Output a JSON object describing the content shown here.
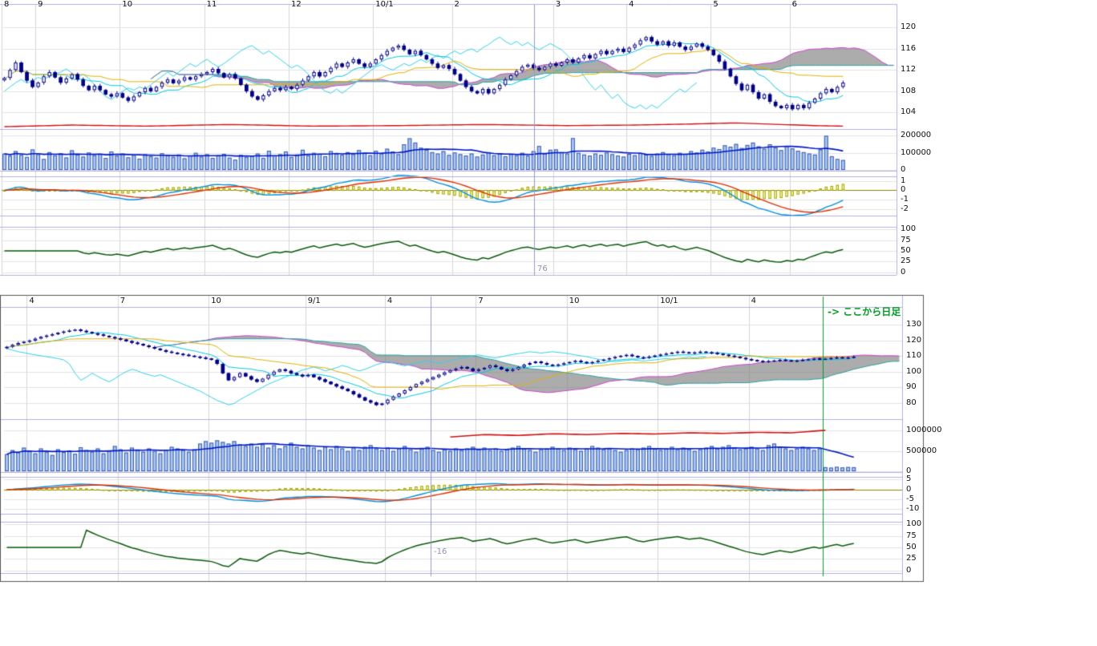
{
  "app": {
    "background": "#ffffff"
  },
  "colors": {
    "grid_v": "#d4d4d4",
    "grid_h": "#e2e2e2",
    "separator": "#b0b0dc",
    "border": "#585858",
    "candle": "#00008b",
    "candle_up_fill": "#ffffff",
    "candle_down_fill": "#00008b",
    "cloud": "rgba(128,128,128,0.65)",
    "senkou_a": "#cc44cc",
    "senkou_b": "#2aa0a0",
    "tenkan": "#00c8e0",
    "kijun": "#e0b000",
    "chikou": "#30d0e8",
    "volume_fill": "#a8c8f0",
    "volume_edge": "#3858b8",
    "volume_ma": "#0018c8",
    "red_line": "#d01010",
    "macd_hist_fill": "#ffffa0",
    "macd_hist_edge": "#a0a000",
    "macd_zero": "#8a8a00",
    "macd_line": "#0090e0",
    "macd_signal": "#e03000",
    "rsi": "#0a5a0a",
    "marker_line": "#9898cc",
    "marker_text": "#9090bb",
    "daily_line": "#00a020",
    "daily_text": "#00a020",
    "tick_text": "#111111"
  },
  "chart_data": [
    {
      "type": "candlestick",
      "title": "",
      "x_labels": [
        {
          "label": "8",
          "i": 0
        },
        {
          "label": "9",
          "i": 6
        },
        {
          "label": "10",
          "i": 21
        },
        {
          "label": "11",
          "i": 36
        },
        {
          "label": "12",
          "i": 51
        },
        {
          "label": "10/1",
          "i": 66
        },
        {
          "label": "2",
          "i": 80
        },
        {
          "label": "3",
          "i": 98
        },
        {
          "label": "4",
          "i": 111
        },
        {
          "label": "5",
          "i": 126
        },
        {
          "label": "6",
          "i": 140
        }
      ],
      "panes": {
        "price": {
          "range": [
            101,
            124
          ],
          "ticks": [
            {
              "label": "120",
              "v": 120
            },
            {
              "label": "116",
              "v": 116
            },
            {
              "label": "112",
              "v": 112
            },
            {
              "label": "108",
              "v": 108
            },
            {
              "label": "104",
              "v": 104
            }
          ]
        },
        "volume": {
          "range": [
            0,
            225
          ],
          "unit": 1000,
          "ticks": [
            {
              "label": "200000",
              "v": 200
            },
            {
              "label": "100000",
              "v": 100
            },
            {
              "label": "0",
              "v": 0
            }
          ]
        },
        "macd": {
          "range": [
            -2.6,
            1.4
          ],
          "ticks": [
            {
              "label": "1",
              "v": 1
            },
            {
              "label": "0",
              "v": 0
            },
            {
              "label": "-1",
              "v": -1
            },
            {
              "label": "-2",
              "v": -2
            }
          ]
        },
        "rsi": {
          "range": [
            -4,
            104
          ],
          "ticks": [
            {
              "label": "100",
              "v": 100
            },
            {
              "label": "75",
              "v": 75
            },
            {
              "label": "50",
              "v": 50
            },
            {
              "label": "25",
              "v": 25
            },
            {
              "label": "0",
              "v": 0
            }
          ]
        }
      },
      "closes": [
        110.5,
        112.0,
        113.4,
        111.6,
        110.0,
        108.8,
        109.6,
        110.8,
        111.6,
        110.6,
        109.6,
        110.4,
        111.2,
        110.2,
        109.0,
        108.2,
        109.0,
        108.2,
        107.4,
        107.0,
        107.6,
        106.8,
        106.2,
        107.0,
        107.8,
        108.6,
        108.0,
        108.8,
        109.6,
        110.2,
        109.5,
        110.0,
        110.6,
        110.2,
        110.8,
        111.2,
        111.6,
        112.2,
        111.4,
        110.6,
        111.2,
        110.4,
        109.2,
        108.0,
        107.0,
        106.4,
        107.2,
        108.0,
        108.6,
        108.2,
        108.8,
        108.4,
        109.2,
        110.0,
        110.8,
        111.6,
        110.8,
        111.6,
        112.4,
        113.2,
        112.6,
        113.4,
        114.0,
        113.2,
        112.6,
        113.2,
        114.0,
        114.8,
        115.6,
        116.2,
        116.6,
        115.8,
        115.0,
        115.6,
        114.8,
        114.0,
        113.2,
        112.4,
        112.9,
        112.2,
        111.2,
        110.0,
        108.8,
        108.0,
        107.6,
        108.4,
        107.6,
        108.4,
        109.2,
        110.2,
        111.0,
        111.8,
        112.6,
        113.0,
        112.4,
        112.0,
        112.6,
        113.2,
        112.8,
        113.4,
        114.0,
        113.4,
        114.2,
        114.8,
        114.2,
        115.0,
        115.6,
        115.0,
        115.6,
        116.0,
        115.4,
        116.2,
        116.8,
        117.6,
        118.2,
        117.4,
        116.8,
        117.4,
        116.6,
        117.2,
        116.4,
        115.8,
        116.4,
        117.0,
        116.4,
        115.8,
        114.8,
        113.6,
        112.2,
        110.8,
        109.4,
        108.2,
        109.2,
        107.8,
        106.6,
        107.4,
        106.0,
        105.2,
        104.8,
        105.4,
        104.6,
        105.4,
        104.8,
        105.8,
        106.6,
        107.6,
        108.4,
        107.8,
        108.8,
        109.6
      ],
      "volumes": [
        95,
        82,
        110,
        88,
        76,
        120,
        92,
        64,
        104,
        85,
        97,
        73,
        115,
        90,
        78,
        102,
        86,
        94,
        70,
        108,
        84,
        96,
        74,
        88,
        66,
        92,
        80,
        72,
        98,
        86,
        76,
        90,
        68,
        84,
        100,
        78,
        92,
        70,
        86,
        94,
        72,
        60,
        88,
        76,
        82,
        96,
        70,
        112,
        84,
        92,
        108,
        76,
        90,
        118,
        86,
        100,
        94,
        80,
        110,
        96,
        88,
        104,
        92,
        116,
        100,
        86,
        112,
        96,
        124,
        108,
        92,
        150,
        185,
        160,
        130,
        118,
        104,
        96,
        110,
        88,
        102,
        92,
        84,
        96,
        78,
        90,
        104,
        86,
        98,
        80,
        92,
        86,
        100,
        84,
        110,
        140,
        96,
        118,
        120,
        104,
        96,
        186,
        100,
        90,
        84,
        96,
        88,
        102,
        92,
        84,
        78,
        94,
        86,
        98,
        90,
        82,
        96,
        104,
        92,
        86,
        100,
        94,
        110,
        102,
        118,
        108,
        130,
        122,
        144,
        136,
        152,
        128,
        146,
        160,
        138,
        124,
        150,
        132,
        116,
        140,
        126,
        112,
        104,
        96,
        90,
        120,
        200,
        80,
        64,
        58
      ],
      "overlay_red_line": [
        [
          0,
          101.3
        ],
        [
          12,
          101.6
        ],
        [
          25,
          101.4
        ],
        [
          40,
          101.7
        ],
        [
          55,
          101.4
        ],
        [
          70,
          101.5
        ],
        [
          85,
          101.7
        ],
        [
          100,
          101.5
        ],
        [
          112,
          101.6
        ],
        [
          122,
          101.8
        ],
        [
          130,
          102.0
        ],
        [
          138,
          101.7
        ],
        [
          144,
          101.5
        ],
        [
          149,
          101.4
        ]
      ],
      "marker": {
        "label": "76",
        "i": 94.6
      }
    },
    {
      "type": "candlestick",
      "title": "",
      "x_labels": [
        {
          "label": "4",
          "i": 4
        },
        {
          "label": "7",
          "i": 20
        },
        {
          "label": "10",
          "i": 36
        },
        {
          "label": "9/1",
          "i": 53
        },
        {
          "label": "4",
          "i": 67
        },
        {
          "label": "7",
          "i": 83
        },
        {
          "label": "10",
          "i": 99
        },
        {
          "label": "10/1",
          "i": 115
        },
        {
          "label": "4",
          "i": 131
        }
      ],
      "panes": {
        "price": {
          "range": [
            70,
            140
          ],
          "ticks": [
            {
              "label": "130",
              "v": 130
            },
            {
              "label": "120",
              "v": 120
            },
            {
              "label": "110",
              "v": 110
            },
            {
              "label": "100",
              "v": 100
            },
            {
              "label": "90",
              "v": 90
            },
            {
              "label": "80",
              "v": 80
            }
          ]
        },
        "volume": {
          "range": [
            0,
            1180
          ],
          "unit": 1000,
          "ticks": [
            {
              "label": "1000000",
              "v": 1000
            },
            {
              "label": "500000",
              "v": 500
            },
            {
              "label": "0",
              "v": 0
            }
          ]
        },
        "macd": {
          "range": [
            -12,
            6
          ],
          "ticks": [
            {
              "label": "5",
              "v": 5
            },
            {
              "label": "0",
              "v": 0
            },
            {
              "label": "-5",
              "v": -5
            },
            {
              "label": "-10",
              "v": -10
            }
          ]
        },
        "rsi": {
          "range": [
            -4,
            104
          ],
          "ticks": [
            {
              "label": "100",
              "v": 100
            },
            {
              "label": "75",
              "v": 75
            },
            {
              "label": "50",
              "v": 50
            },
            {
              "label": "25",
              "v": 25
            },
            {
              "label": "0",
              "v": 0
            }
          ]
        }
      },
      "closes": [
        116.0,
        117.2,
        118.4,
        119.2,
        120.0,
        121.2,
        122.4,
        123.2,
        124.0,
        125.0,
        125.8,
        126.4,
        127.0,
        126.2,
        125.4,
        124.6,
        123.8,
        123.0,
        122.2,
        121.4,
        120.6,
        119.6,
        118.6,
        117.8,
        116.8,
        115.8,
        114.8,
        113.8,
        112.8,
        112.2,
        111.4,
        110.8,
        110.2,
        109.6,
        109.0,
        108.4,
        107.6,
        105.0,
        99.0,
        94.5,
        96.5,
        99.0,
        97.0,
        95.0,
        93.5,
        95.5,
        98.0,
        100.0,
        101.5,
        100.5,
        99.0,
        98.0,
        97.0,
        98.0,
        96.5,
        95.0,
        93.5,
        92.0,
        90.5,
        89.0,
        87.5,
        85.5,
        83.5,
        81.5,
        80.2,
        78.6,
        79.6,
        82.0,
        84.0,
        86.0,
        88.0,
        90.0,
        92.0,
        93.5,
        95.0,
        96.5,
        98.0,
        99.5,
        101.0,
        102.0,
        103.0,
        102.0,
        100.5,
        101.5,
        102.5,
        104.0,
        103.0,
        101.5,
        100.5,
        101.5,
        103.0,
        104.5,
        105.5,
        106.5,
        105.5,
        104.5,
        103.8,
        104.6,
        105.4,
        106.2,
        107.0,
        106.2,
        105.4,
        106.2,
        107.0,
        107.8,
        108.6,
        109.4,
        110.2,
        110.8,
        110.0,
        109.2,
        108.8,
        109.6,
        110.4,
        111.0,
        111.6,
        112.2,
        112.8,
        112.4,
        112.0,
        112.4,
        112.8,
        112.4,
        112.0,
        111.4,
        110.8,
        110.2,
        109.6,
        108.8,
        108.0,
        107.4,
        106.8,
        106.4,
        106.8,
        107.2,
        107.6,
        107.2,
        106.8,
        107.2,
        107.6,
        108.0,
        108.4,
        108.0,
        108.4,
        108.8,
        109.2,
        108.8,
        109.2,
        109.6
      ],
      "volumes": [
        420,
        520,
        460,
        580,
        500,
        440,
        560,
        480,
        400,
        540,
        470,
        510,
        430,
        590,
        520,
        480,
        560,
        440,
        500,
        620,
        540,
        460,
        580,
        520,
        480,
        560,
        500,
        440,
        520,
        600,
        560,
        520,
        480,
        540,
        680,
        740,
        700,
        760,
        720,
        680,
        740,
        660,
        620,
        680,
        600,
        660,
        580,
        640,
        560,
        620,
        700,
        600,
        560,
        640,
        580,
        520,
        600,
        540,
        620,
        560,
        500,
        580,
        520,
        600,
        640,
        560,
        520,
        580,
        500,
        560,
        620,
        540,
        480,
        560,
        600,
        520,
        480,
        540,
        500,
        560,
        520,
        560,
        600,
        540,
        580,
        520,
        560,
        500,
        540,
        580,
        620,
        560,
        520,
        480,
        540,
        560,
        600,
        560,
        520,
        580,
        540,
        500,
        560,
        620,
        580,
        540,
        560,
        520,
        480,
        520,
        560,
        540,
        580,
        620,
        560,
        520,
        560,
        600,
        540,
        580,
        540,
        500,
        540,
        580,
        620,
        560,
        600,
        640,
        580,
        540,
        560,
        600,
        560,
        520,
        640,
        680,
        600,
        560,
        520,
        560,
        600,
        560,
        520,
        560,
        100,
        90,
        110,
        95,
        105,
        100
      ],
      "volume_red_line": [
        [
          78,
          840
        ],
        [
          84,
          900
        ],
        [
          90,
          880
        ],
        [
          96,
          920
        ],
        [
          102,
          900
        ],
        [
          108,
          930
        ],
        [
          114,
          915
        ],
        [
          120,
          945
        ],
        [
          126,
          930
        ],
        [
          132,
          955
        ],
        [
          138,
          945
        ],
        [
          142,
          985
        ],
        [
          144,
          1005
        ]
      ],
      "marker": {
        "label": "-16",
        "i": 75
      },
      "daily_note": {
        "label": "-> ここから日足",
        "i": 144
      }
    }
  ]
}
